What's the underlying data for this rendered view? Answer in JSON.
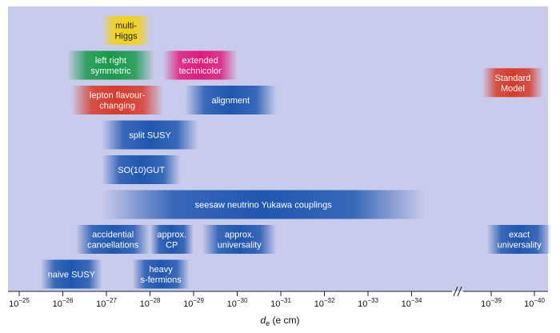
{
  "chart_data": {
    "type": "range-bar",
    "xlabel": "d_e (e cm)",
    "xlabel_parts": {
      "base": "d",
      "sub": "e",
      "rest": " (e cm)"
    },
    "x_scale": "log (decreasing)",
    "x_axis_break_between": [
      -34,
      -39
    ],
    "x_ticks": [
      {
        "exp": -25,
        "label": "10−25"
      },
      {
        "exp": -26,
        "label": "10−26"
      },
      {
        "exp": -27,
        "label": "10−27"
      },
      {
        "exp": -28,
        "label": "10−28"
      },
      {
        "exp": -29,
        "label": "10−29"
      },
      {
        "exp": -30,
        "label": "10−30"
      },
      {
        "exp": -31,
        "label": "10−31"
      },
      {
        "exp": -32,
        "label": "10−32"
      },
      {
        "exp": -33,
        "label": "10−33"
      },
      {
        "exp": -34,
        "label": "10−34"
      },
      {
        "exp": -39,
        "label": "10−39"
      },
      {
        "exp": -40,
        "label": "10−40"
      }
    ],
    "bars": [
      {
        "lines": [
          "multi-",
          "Higgs"
        ],
        "from_exp": -26.9,
        "to_exp": -28.0,
        "row": 0,
        "color": "#f3d21a",
        "text_dark": true
      },
      {
        "lines": [
          "left right",
          "symmetric"
        ],
        "from_exp": -26.1,
        "to_exp": -28.1,
        "row": 1,
        "color": "#189a4a"
      },
      {
        "lines": [
          "extended",
          "technicolor"
        ],
        "from_exp": -28.3,
        "to_exp": -30.0,
        "row": 1,
        "color": "#e21a7c"
      },
      {
        "lines": [
          "Standard",
          "Model"
        ],
        "from_exp": -38.8,
        "to_exp": -40.2,
        "row": 1.5,
        "color": "#d83a2a"
      },
      {
        "lines": [
          "lepton flavour-",
          "changing"
        ],
        "from_exp": -26.2,
        "to_exp": -28.3,
        "row": 2,
        "color": "#d83a2a"
      },
      {
        "lines": [
          "alignment"
        ],
        "from_exp": -28.8,
        "to_exp": -30.9,
        "row": 2,
        "color": "#1f57b0"
      },
      {
        "lines": [
          "split SUSY"
        ],
        "from_exp": -26.9,
        "to_exp": -29.1,
        "row": 3,
        "color": "#1f57b0"
      },
      {
        "lines": [
          "SO(10)GUT"
        ],
        "from_exp": -26.9,
        "to_exp": -28.7,
        "row": 4,
        "color": "#1f57b0"
      },
      {
        "lines": [
          "seesaw neutrino Yukawa couplings"
        ],
        "from_exp": -26.9,
        "to_exp": -34.3,
        "row": 5,
        "color": "#1f57b0"
      },
      {
        "lines": [
          "accidential",
          "canoellations"
        ],
        "from_exp": -26.3,
        "to_exp": -28.0,
        "row": 6,
        "color": "#1f57b0"
      },
      {
        "lines": [
          "approx.",
          "CP"
        ],
        "from_exp": -28.0,
        "to_exp": -29.0,
        "row": 6,
        "color": "#1f57b0"
      },
      {
        "lines": [
          "approx.",
          "universality"
        ],
        "from_exp": -29.2,
        "to_exp": -30.9,
        "row": 6,
        "color": "#1f57b0"
      },
      {
        "lines": [
          "exact",
          "universality"
        ],
        "from_exp": -38.9,
        "to_exp": -40.4,
        "row": 6,
        "color": "#1f57b0"
      },
      {
        "lines": [
          "naive SUSY"
        ],
        "from_exp": -25.5,
        "to_exp": -26.9,
        "row": 7,
        "color": "#1f57b0"
      },
      {
        "lines": [
          "heavy",
          "s-fermions"
        ],
        "from_exp": -27.6,
        "to_exp": -28.9,
        "row": 7,
        "color": "#1f57b0"
      }
    ]
  }
}
